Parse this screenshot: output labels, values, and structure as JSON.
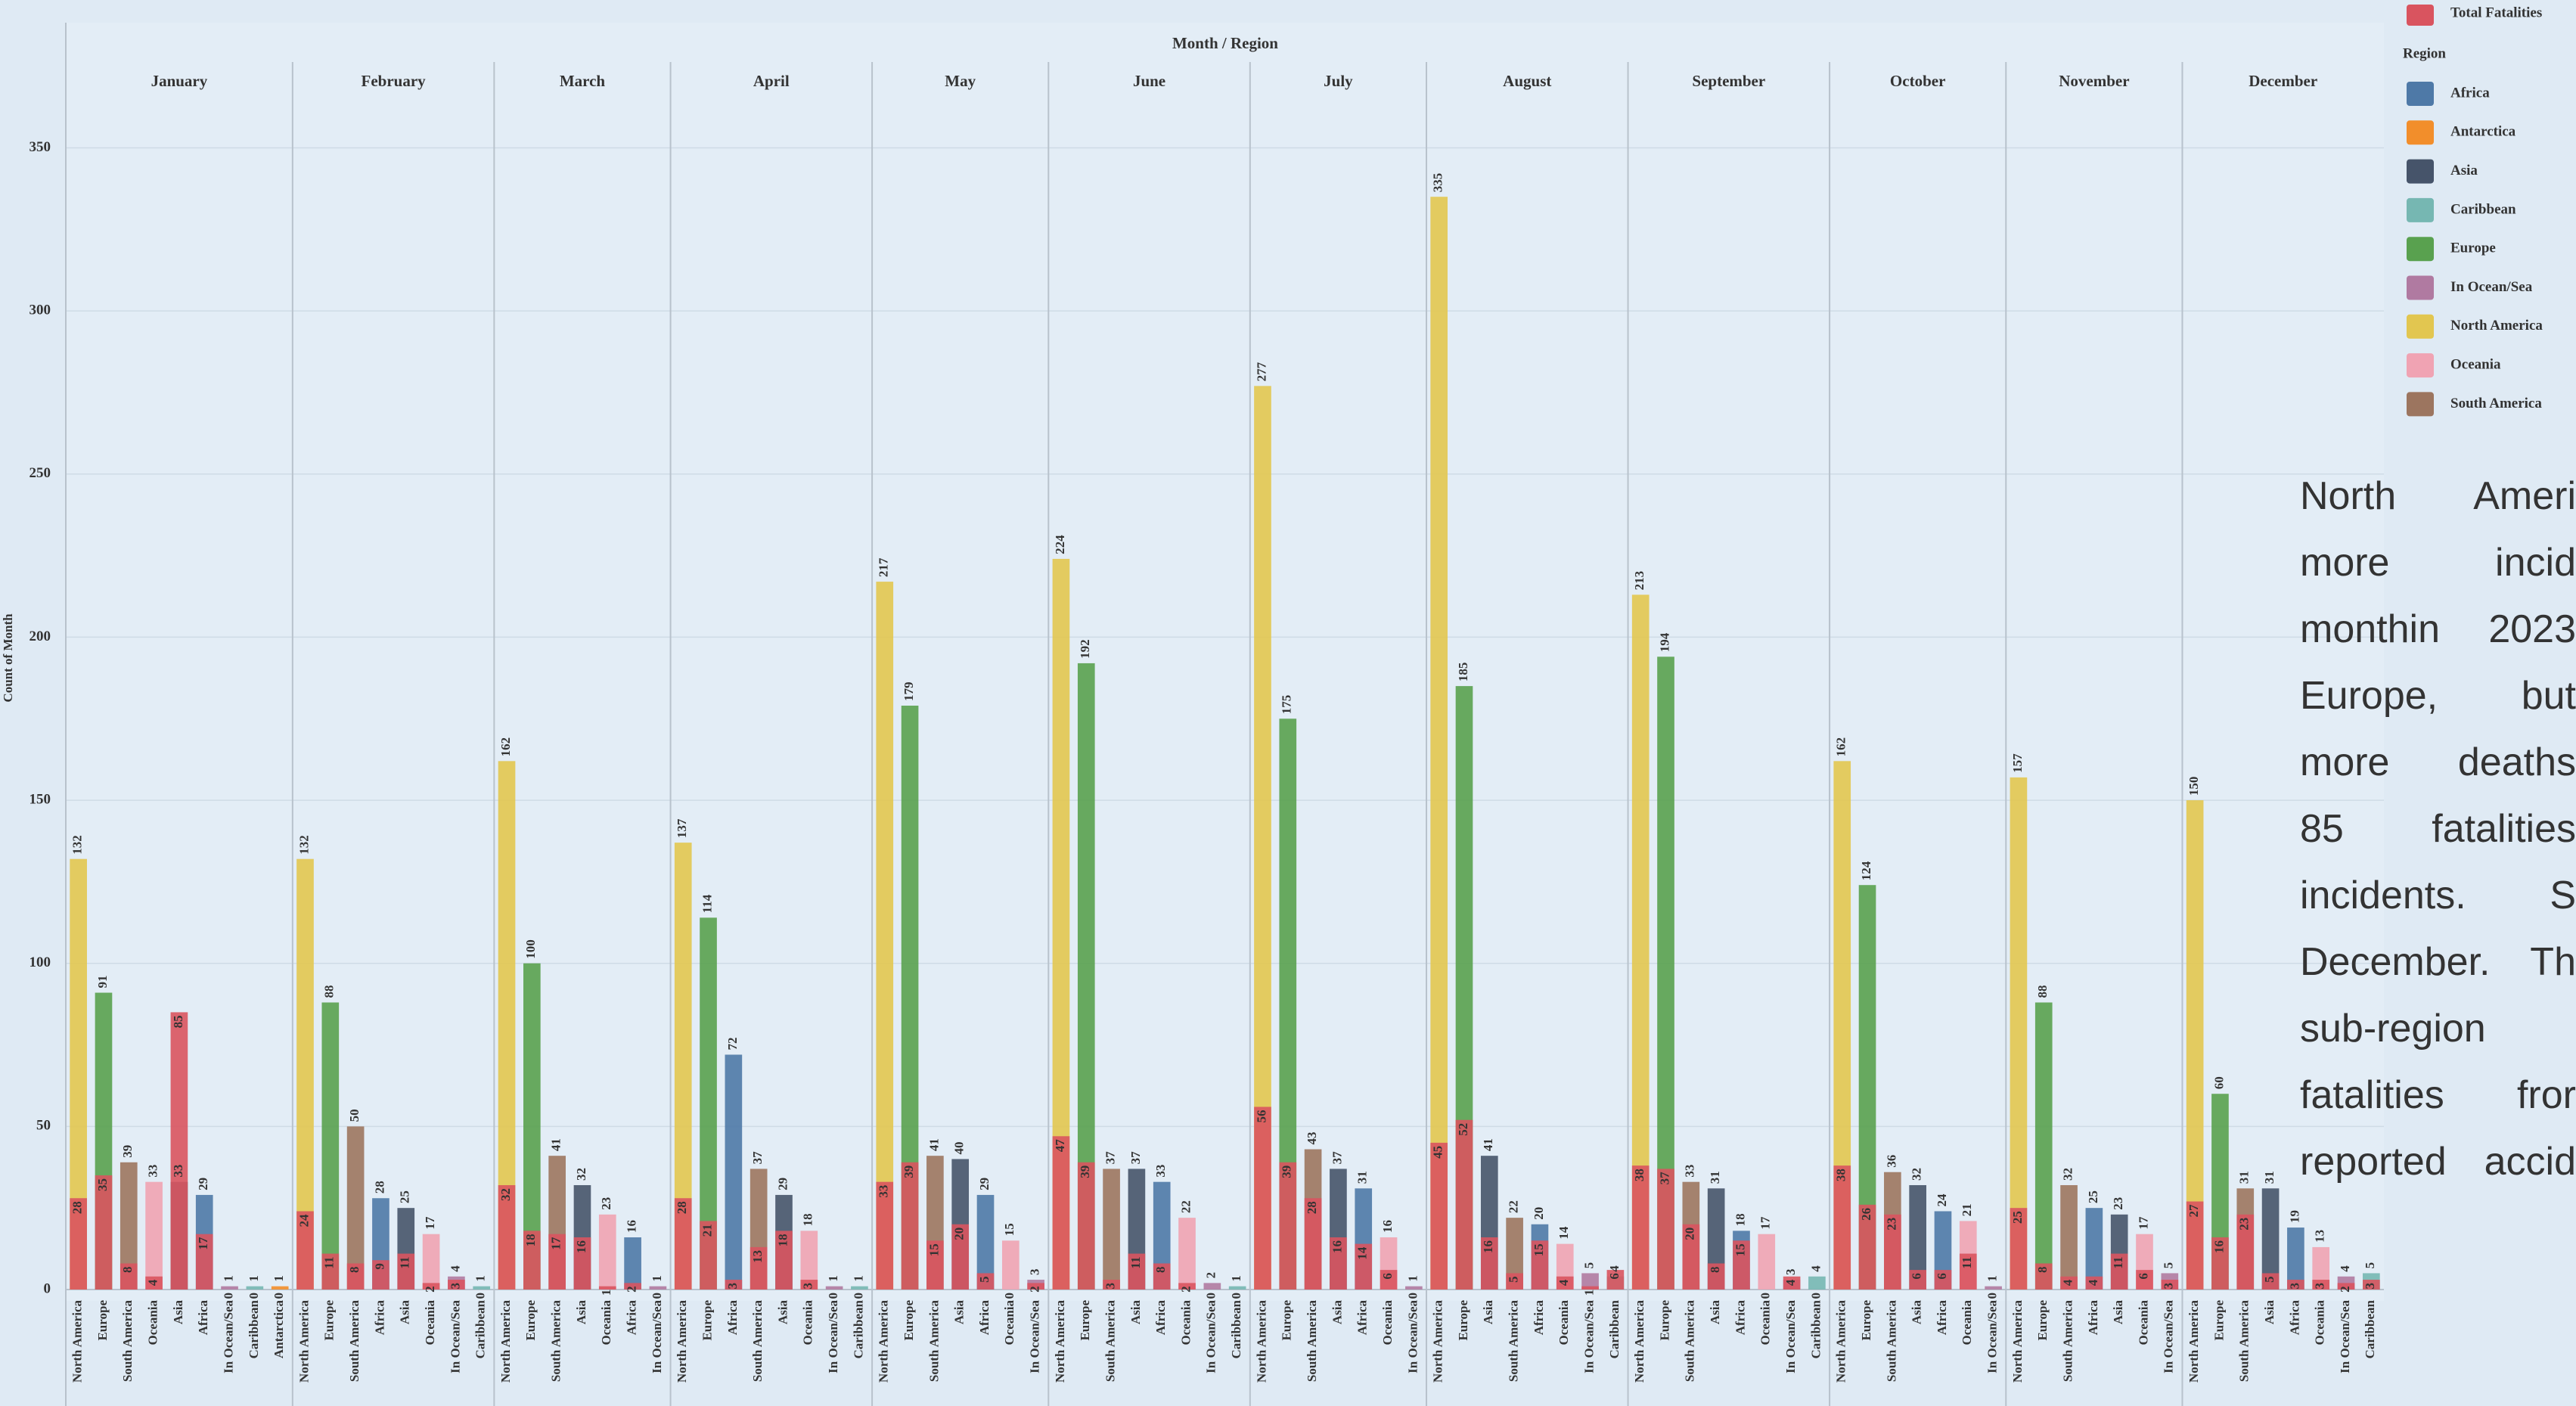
{
  "chart_data": {
    "type": "grouped-bar",
    "title": "Month / Region",
    "y_label": "Count of Month",
    "ylim": [
      0,
      350
    ],
    "yticks": [
      0,
      50,
      100,
      150,
      200,
      250,
      300,
      350
    ],
    "grid": true,
    "legend": {
      "fatalities_label": "Total Fatalities",
      "fatalities_color": "#d9545f",
      "title": "Region",
      "regions": [
        {
          "name": "Africa",
          "color": "#4e79a7"
        },
        {
          "name": "Antarctica",
          "color": "#f28e2b"
        },
        {
          "name": "Asia",
          "color": "#46546a"
        },
        {
          "name": "Caribbean",
          "color": "#76b7b2"
        },
        {
          "name": "Europe",
          "color": "#59a14f"
        },
        {
          "name": "In Ocean/Sea",
          "color": "#b07aa1"
        },
        {
          "name": "North America",
          "color": "#e2c650"
        },
        {
          "name": "Oceania",
          "color": "#f0a3b3"
        },
        {
          "name": "South America",
          "color": "#9c755f"
        }
      ]
    },
    "months": [
      {
        "name": "January",
        "bars": [
          {
            "region": "North America",
            "count": 132,
            "fatalities": 28
          },
          {
            "region": "Europe",
            "count": 91,
            "fatalities": 35
          },
          {
            "region": "South America",
            "count": 39,
            "fatalities": 8
          },
          {
            "region": "Oceania",
            "count": 33,
            "fatalities": 4
          },
          {
            "region": "Asia",
            "count": 33,
            "fatalities": 85
          },
          {
            "region": "Africa",
            "count": 29,
            "fatalities": 17
          },
          {
            "region": "In Ocean/Sea",
            "count": 1,
            "fatalities": 0
          },
          {
            "region": "Caribbean",
            "count": 1,
            "fatalities": 0
          },
          {
            "region": "Antarctica",
            "count": 1,
            "fatalities": 0
          }
        ]
      },
      {
        "name": "February",
        "bars": [
          {
            "region": "North America",
            "count": 132,
            "fatalities": 24
          },
          {
            "region": "Europe",
            "count": 88,
            "fatalities": 11
          },
          {
            "region": "South America",
            "count": 50,
            "fatalities": 8
          },
          {
            "region": "Africa",
            "count": 28,
            "fatalities": 9
          },
          {
            "region": "Asia",
            "count": 25,
            "fatalities": 11
          },
          {
            "region": "Oceania",
            "count": 17,
            "fatalities": 2
          },
          {
            "region": "In Ocean/Sea",
            "count": 4,
            "fatalities": 3
          },
          {
            "region": "Caribbean",
            "count": 1,
            "fatalities": 0
          }
        ]
      },
      {
        "name": "March",
        "bars": [
          {
            "region": "North America",
            "count": 162,
            "fatalities": 32
          },
          {
            "region": "Europe",
            "count": 100,
            "fatalities": 18
          },
          {
            "region": "South America",
            "count": 41,
            "fatalities": 17
          },
          {
            "region": "Asia",
            "count": 32,
            "fatalities": 16
          },
          {
            "region": "Oceania",
            "count": 23,
            "fatalities": 1
          },
          {
            "region": "Africa",
            "count": 16,
            "fatalities": 2
          },
          {
            "region": "In Ocean/Sea",
            "count": 1,
            "fatalities": 0
          }
        ]
      },
      {
        "name": "April",
        "bars": [
          {
            "region": "North America",
            "count": 137,
            "fatalities": 28
          },
          {
            "region": "Europe",
            "count": 114,
            "fatalities": 21
          },
          {
            "region": "Africa",
            "count": 72,
            "fatalities": 3
          },
          {
            "region": "South America",
            "count": 37,
            "fatalities": 13
          },
          {
            "region": "Asia",
            "count": 29,
            "fatalities": 18
          },
          {
            "region": "Oceania",
            "count": 18,
            "fatalities": 3
          },
          {
            "region": "In Ocean/Sea",
            "count": 1,
            "fatalities": 0
          },
          {
            "region": "Caribbean",
            "count": 1,
            "fatalities": 0
          }
        ]
      },
      {
        "name": "May",
        "bars": [
          {
            "region": "North America",
            "count": 217,
            "fatalities": 33
          },
          {
            "region": "Europe",
            "count": 179,
            "fatalities": 39
          },
          {
            "region": "South America",
            "count": 41,
            "fatalities": 15
          },
          {
            "region": "Asia",
            "count": 40,
            "fatalities": 20
          },
          {
            "region": "Africa",
            "count": 29,
            "fatalities": 5
          },
          {
            "region": "Oceania",
            "count": 15,
            "fatalities": 0
          },
          {
            "region": "In Ocean/Sea",
            "count": 3,
            "fatalities": 2
          }
        ]
      },
      {
        "name": "June",
        "bars": [
          {
            "region": "North America",
            "count": 224,
            "fatalities": 47
          },
          {
            "region": "Europe",
            "count": 192,
            "fatalities": 39
          },
          {
            "region": "South America",
            "count": 37,
            "fatalities": 3
          },
          {
            "region": "Asia",
            "count": 37,
            "fatalities": 11
          },
          {
            "region": "Africa",
            "count": 33,
            "fatalities": 8
          },
          {
            "region": "Oceania",
            "count": 22,
            "fatalities": 2
          },
          {
            "region": "In Ocean/Sea",
            "count": 2,
            "fatalities": 0
          },
          {
            "region": "Caribbean",
            "count": 1,
            "fatalities": 0
          }
        ]
      },
      {
        "name": "July",
        "bars": [
          {
            "region": "North America",
            "count": 277,
            "fatalities": 56
          },
          {
            "region": "Europe",
            "count": 175,
            "fatalities": 39
          },
          {
            "region": "South America",
            "count": 43,
            "fatalities": 28
          },
          {
            "region": "Asia",
            "count": 37,
            "fatalities": 16
          },
          {
            "region": "Africa",
            "count": 31,
            "fatalities": 14
          },
          {
            "region": "Oceania",
            "count": 16,
            "fatalities": 6
          },
          {
            "region": "In Ocean/Sea",
            "count": 1,
            "fatalities": 0
          }
        ]
      },
      {
        "name": "August",
        "bars": [
          {
            "region": "North America",
            "count": 335,
            "fatalities": 45
          },
          {
            "region": "Europe",
            "count": 185,
            "fatalities": 52
          },
          {
            "region": "Asia",
            "count": 41,
            "fatalities": 16
          },
          {
            "region": "South America",
            "count": 22,
            "fatalities": 5
          },
          {
            "region": "Africa",
            "count": 20,
            "fatalities": 15
          },
          {
            "region": "Oceania",
            "count": 14,
            "fatalities": 4
          },
          {
            "region": "In Ocean/Sea",
            "count": 5,
            "fatalities": 1
          },
          {
            "region": "Caribbean",
            "count": 4,
            "fatalities": 6
          }
        ]
      },
      {
        "name": "September",
        "bars": [
          {
            "region": "North America",
            "count": 213,
            "fatalities": 38
          },
          {
            "region": "Europe",
            "count": 194,
            "fatalities": 37
          },
          {
            "region": "South America",
            "count": 33,
            "fatalities": 20
          },
          {
            "region": "Asia",
            "count": 31,
            "fatalities": 8
          },
          {
            "region": "Africa",
            "count": 18,
            "fatalities": 15
          },
          {
            "region": "Oceania",
            "count": 17,
            "fatalities": 0
          },
          {
            "region": "In Ocean/Sea",
            "count": 3,
            "fatalities": 4
          },
          {
            "region": "Caribbean",
            "count": 4,
            "fatalities": 0
          }
        ]
      },
      {
        "name": "October",
        "bars": [
          {
            "region": "North America",
            "count": 162,
            "fatalities": 38
          },
          {
            "region": "Europe",
            "count": 124,
            "fatalities": 26
          },
          {
            "region": "South America",
            "count": 36,
            "fatalities": 23
          },
          {
            "region": "Asia",
            "count": 32,
            "fatalities": 6
          },
          {
            "region": "Africa",
            "count": 24,
            "fatalities": 6
          },
          {
            "region": "Oceania",
            "count": 21,
            "fatalities": 11
          },
          {
            "region": "In Ocean/Sea",
            "count": 1,
            "fatalities": 0
          }
        ]
      },
      {
        "name": "November",
        "bars": [
          {
            "region": "North America",
            "count": 157,
            "fatalities": 25
          },
          {
            "region": "Europe",
            "count": 88,
            "fatalities": 8
          },
          {
            "region": "South America",
            "count": 32,
            "fatalities": 4
          },
          {
            "region": "Africa",
            "count": 25,
            "fatalities": 4
          },
          {
            "region": "Asia",
            "count": 23,
            "fatalities": 11
          },
          {
            "region": "Oceania",
            "count": 17,
            "fatalities": 6
          },
          {
            "region": "In Ocean/Sea",
            "count": 5,
            "fatalities": 3
          }
        ]
      },
      {
        "name": "December",
        "bars": [
          {
            "region": "North America",
            "count": 150,
            "fatalities": 27
          },
          {
            "region": "Europe",
            "count": 60,
            "fatalities": 16
          },
          {
            "region": "South America",
            "count": 31,
            "fatalities": 23
          },
          {
            "region": "Asia",
            "count": 31,
            "fatalities": 5
          },
          {
            "region": "Africa",
            "count": 19,
            "fatalities": 3
          },
          {
            "region": "Oceania",
            "count": 13,
            "fatalities": 3
          },
          {
            "region": "In Ocean/Sea",
            "count": 4,
            "fatalities": 2
          },
          {
            "region": "Caribbean",
            "count": 5,
            "fatalities": 3
          }
        ]
      }
    ]
  },
  "paragraph": [
    "North Ameri",
    "more incid",
    "monthin 2023",
    "Europe, but",
    "more deaths",
    "85 fatalities",
    "incidents. S",
    "December. Th",
    "sub-region",
    "fatalities fror",
    "reported accid"
  ]
}
